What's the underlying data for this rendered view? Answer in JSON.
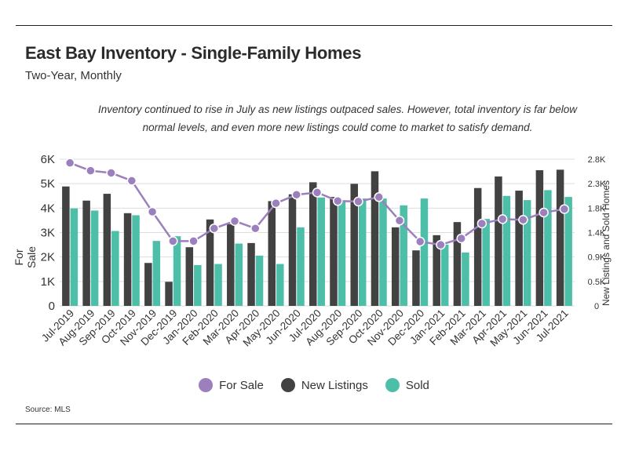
{
  "header": {
    "title": "East Bay Inventory - Single-Family Homes",
    "subtitle": "Two-Year, Monthly",
    "annotation_line1": "Inventory continued to rise in July as new listings outpaced sales. However, total inventory is far below",
    "annotation_line2": "normal levels, and even more new listings could come to market to satisfy demand."
  },
  "source": "Source:  MLS",
  "colors": {
    "for_sale": "#9c7fbd",
    "new_listings": "#424242",
    "sold": "#4dbfa8"
  },
  "chart_data": {
    "type": "bar",
    "categories": [
      "Jul-2019",
      "Aug-2019",
      "Sep-2019",
      "Oct-2019",
      "Nov-2019",
      "Dec-2019",
      "Jan-2020",
      "Feb-2020",
      "Mar-2020",
      "Apr-2020",
      "May-2020",
      "Jun-2020",
      "Jul-2020",
      "Aug-2020",
      "Sep-2020",
      "Oct-2020",
      "Nov-2020",
      "Dec-2020",
      "Jan-2021",
      "Feb-2021",
      "Mar-2021",
      "Apr-2021",
      "May-2021",
      "Jun-2021",
      "Jul-2021"
    ],
    "ylabel": "For Sale",
    "y2label": "New Listings and Sold Homes",
    "ylim": [
      0,
      6000
    ],
    "y2lim": [
      0,
      2800
    ],
    "y_ticks": [
      "0",
      "1K",
      "2K",
      "3K",
      "4K",
      "5K",
      "6K"
    ],
    "y2_ticks": [
      "0",
      "0.5K",
      "0.9K",
      "1.4K",
      "1.8K",
      "2.3K",
      "2.8K"
    ],
    "legend_placement": "bottom",
    "grid": true,
    "series": [
      {
        "name": "For Sale",
        "type": "line",
        "axis": "left",
        "values": [
          5850,
          5530,
          5440,
          5120,
          3850,
          2650,
          2650,
          3170,
          3470,
          3170,
          4200,
          4550,
          4640,
          4290,
          4270,
          4450,
          3490,
          2630,
          2500,
          2760,
          3370,
          3550,
          3520,
          3820,
          3960
        ]
      },
      {
        "name": "New Listings",
        "type": "bar",
        "axis": "right",
        "values": [
          2280,
          2010,
          2140,
          1770,
          820,
          460,
          1120,
          1650,
          1560,
          1200,
          2000,
          2130,
          2360,
          2080,
          2330,
          2570,
          1500,
          1060,
          1350,
          1600,
          2250,
          2470,
          2200,
          2590,
          2600
        ]
      },
      {
        "name": "Sold",
        "type": "bar",
        "axis": "right",
        "values": [
          1860,
          1820,
          1430,
          1730,
          1240,
          1330,
          780,
          800,
          1190,
          960,
          800,
          1500,
          2070,
          1990,
          2050,
          2050,
          1920,
          2050,
          1170,
          1020,
          1660,
          2100,
          2020,
          2210,
          2080
        ]
      }
    ]
  }
}
